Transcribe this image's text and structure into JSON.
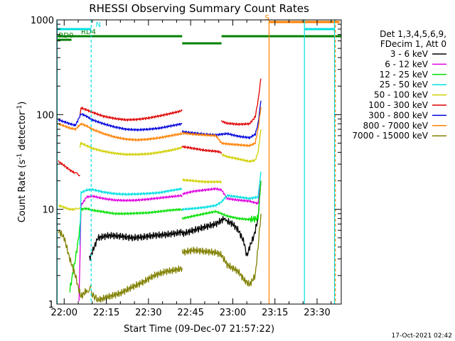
{
  "chart_data": {
    "type": "line",
    "title": "RHESSI Observing Summary Count Rates",
    "xlabel": "Start Time (09-Dec-07 21:57:22)",
    "ylabel_main": "Count Rate (s",
    "ylabel_sup1": "-1",
    "ylabel_mid": " detector",
    "ylabel_sup2": "-1",
    "ylabel_end": ")",
    "yscale": "log",
    "ylim": [
      1,
      1000
    ],
    "xlim_min": [
      -2.6,
      98.6
    ],
    "x_units": "minutes after 22:00",
    "x_ticks": [
      {
        "m": 0,
        "label": "22:00"
      },
      {
        "m": 15,
        "label": "22:15"
      },
      {
        "m": 30,
        "label": "22:30"
      },
      {
        "m": 45,
        "label": "22:45"
      },
      {
        "m": 60,
        "label": "23:00"
      },
      {
        "m": 75,
        "label": "23:15"
      },
      {
        "m": 90,
        "label": "23:30"
      }
    ],
    "y_ticks": [
      {
        "v": 1,
        "label": "1"
      },
      {
        "v": 10,
        "label": "10"
      },
      {
        "v": 100,
        "label": "100"
      },
      {
        "v": 1000,
        "label": "1000"
      }
    ],
    "legend_header": [
      "Det 1,3,4,5,6,9,",
      "FDecim 1, Att 0"
    ],
    "series": [
      {
        "name": "3 - 6 keV",
        "color": "#000000",
        "segments": [
          {
            "x": [
              9,
              12,
              16,
              20,
              24,
              28,
              32,
              36,
              40,
              42
            ],
            "y": [
              3.0,
              5.0,
              5.3,
              5.2,
              5.0,
              5.1,
              5.3,
              5.4,
              5.6,
              5.8
            ]
          },
          {
            "x": [
              42,
              46,
              50,
              54,
              57,
              58,
              60,
              62,
              64,
              65,
              66,
              67.5,
              69,
              70
            ],
            "y": [
              5.5,
              6.0,
              6.5,
              7.0,
              8.0,
              7.5,
              7.0,
              6.0,
              4.5,
              3.2,
              4.0,
              5.2,
              8.0,
              20
            ]
          }
        ]
      },
      {
        "name": "6 - 12 keV",
        "color": "#e000e0",
        "segments": [
          {
            "x": [
              5.3,
              6,
              8,
              10,
              14,
              18,
              22,
              26,
              30,
              34,
              38,
              42
            ],
            "y": [
              1.0,
              11,
              13.5,
              13.8,
              13.0,
              12.5,
              12.4,
              12.5,
              12.8,
              13.2,
              13.6,
              14.0
            ]
          },
          {
            "x": [
              42,
              46,
              50,
              54,
              56,
              58,
              62,
              66,
              69,
              70
            ],
            "y": [
              14.5,
              15.5,
              16.0,
              16.5,
              16.0,
              13.0,
              12.5,
              12.2,
              11.5,
              20
            ]
          }
        ]
      },
      {
        "name": "12 - 25 keV",
        "color": "#00e000",
        "segments": [
          {
            "x": [
              2,
              4,
              5.5,
              6,
              8,
              10,
              14,
              18,
              22,
              26,
              30,
              34,
              38,
              42
            ],
            "y": [
              1.4,
              3.0,
              6.0,
              10.0,
              10.2,
              9.8,
              9.4,
              9.0,
              9.0,
              9.1,
              9.2,
              9.5,
              9.8,
              10.0
            ]
          },
          {
            "x": [
              42,
              46,
              50,
              54,
              56,
              58,
              62,
              66,
              69,
              70
            ],
            "y": [
              8.0,
              8.5,
              9.0,
              9.5,
              9.0,
              8.5,
              8.0,
              7.8,
              8.0,
              20
            ]
          }
        ]
      },
      {
        "name": "25 - 50 keV",
        "color": "#00e0e0",
        "segments": [
          {
            "x": [
              5.5,
              6,
              8,
              10,
              14,
              18,
              22,
              26,
              30,
              34,
              38,
              42
            ],
            "y": [
              4.0,
              15,
              16.0,
              16.2,
              15.2,
              14.6,
              14.4,
              14.5,
              14.7,
              15.0,
              15.8,
              16.5
            ]
          },
          {
            "x": [
              42,
              46,
              50,
              54,
              56,
              58,
              62,
              66,
              69,
              70
            ],
            "y": [
              10.0,
              10.2,
              10.5,
              11.0,
              12.0,
              14.0,
              13.5,
              13.0,
              13.5,
              25
            ]
          }
        ]
      },
      {
        "name": "50 - 100 keV",
        "color": "#d0d000",
        "segments": [
          {
            "x": [
              -2,
              0,
              2,
              4,
              5.6
            ],
            "y": [
              11.0,
              10.5,
              10.0,
              10.0,
              10.5
            ]
          },
          {
            "x": [
              5.6,
              6,
              8,
              10,
              14,
              18,
              22,
              26,
              30,
              34,
              38,
              42
            ],
            "y": [
              45,
              50,
              47,
              44,
              41,
              39,
              38,
              38,
              38.5,
              40,
              42,
              45
            ]
          },
          {
            "x": [
              42,
              46,
              50,
              54,
              56
            ],
            "y": [
              20.5,
              20.0,
              19.5,
              19.5,
              19.5
            ]
          },
          {
            "x": [
              56,
              58,
              62,
              66,
              68,
              69,
              70
            ],
            "y": [
              38,
              36,
              34,
              32,
              33,
              40,
              70
            ]
          }
        ]
      },
      {
        "name": "100 - 300 keV",
        "color": "#e00000",
        "segments": [
          {
            "x": [
              -2,
              0,
              2,
              4,
              5.6
            ],
            "y": [
              32,
              29,
              26,
              24,
              23
            ]
          },
          {
            "x": [
              5.6,
              6,
              8,
              10,
              14,
              18,
              22,
              26,
              30,
              34,
              38,
              42
            ],
            "y": [
              100,
              118,
              112,
              106,
              96,
              91,
              88,
              89,
              92,
              97,
              103,
              110
            ]
          },
          {
            "x": [
              42,
              46,
              50,
              54,
              56
            ],
            "y": [
              46,
              44,
              42,
              41,
              40
            ]
          },
          {
            "x": [
              56,
              58,
              62,
              66,
              68,
              69,
              70
            ],
            "y": [
              85,
              81,
              79,
              80,
              95,
              140,
              240
            ]
          }
        ]
      },
      {
        "name": "300 - 800 keV",
        "color": "#0000e0",
        "segments": [
          {
            "x": [
              -2,
              0,
              2,
              4,
              6,
              8,
              10,
              14,
              18,
              22,
              26,
              30,
              34,
              38,
              42
            ],
            "y": [
              88,
              84,
              80,
              77,
              102,
              96,
              88,
              80,
              74,
              70,
              69,
              70,
              72,
              76,
              80
            ]
          },
          {
            "x": [
              42,
              46,
              50,
              54,
              56,
              58,
              62,
              66,
              68,
              69,
              70
            ],
            "y": [
              66,
              64,
              62,
              61,
              62,
              63,
              59,
              57,
              62,
              80,
              140
            ]
          }
        ]
      },
      {
        "name": "800 - 7000 keV",
        "color": "#ff8000",
        "segments": [
          {
            "x": [
              -2,
              0,
              2,
              4,
              6,
              8,
              10,
              14,
              18,
              22,
              26,
              30,
              34,
              38,
              42
            ],
            "y": [
              80,
              76,
              72,
              70,
              80,
              76,
              70,
              63,
              58,
              55,
              54,
              55,
              57,
              60,
              63
            ]
          },
          {
            "x": [
              42,
              46,
              50,
              54,
              56,
              58,
              62,
              66,
              68,
              69,
              70
            ],
            "y": [
              64,
              62,
              61,
              60,
              50,
              49,
              48,
              47,
              50,
              70,
              120
            ]
          }
        ]
      },
      {
        "name": "7000 - 15000 keV",
        "color": "#808000",
        "segments": [
          {
            "x": [
              -2,
              0,
              2,
              4,
              5,
              6,
              8,
              9.6
            ],
            "y": [
              6,
              5,
              3,
              2,
              1.5,
              1.2,
              1.4,
              1.5
            ]
          },
          {
            "x": [
              9.6,
              12,
              16,
              20,
              24,
              28,
              32,
              36,
              40,
              42
            ],
            "y": [
              1.3,
              1.1,
              1.2,
              1.3,
              1.5,
              1.7,
              2.0,
              2.2,
              2.3,
              2.4
            ]
          },
          {
            "x": [
              42,
              46,
              50,
              54,
              56,
              58,
              62,
              64,
              66,
              68,
              69,
              70
            ],
            "y": [
              3.5,
              3.7,
              3.6,
              3.5,
              3.3,
              2.6,
              2.2,
              1.8,
              1.6,
              2.0,
              4.0,
              9.0
            ]
          }
        ]
      }
    ],
    "flags": [
      {
        "label": "RD0",
        "color": "#008000",
        "label_m": -2.0,
        "segments": [
          [
            -2.6,
            2.6
          ]
        ],
        "level": 1.0
      },
      {
        "label": "RD4",
        "color": "#008000",
        "label_m": 6.0,
        "segments": [
          [
            -2.6,
            42.0
          ],
          [
            56.0,
            98.6
          ]
        ],
        "level": 1.5
      },
      {
        "label": "",
        "color": "#008000",
        "label_m": 0,
        "segments": [
          [
            42.0,
            56.0
          ]
        ],
        "level": 0.5
      },
      {
        "label": "N",
        "color": "#00e0e0",
        "label_m": 11.2,
        "segments": [
          [
            -2.6,
            9.6
          ],
          [
            85.5,
            96.3
          ]
        ],
        "level": 2.5
      },
      {
        "label": "S",
        "color": "#ff8000",
        "label_m": 71.4,
        "segments": [
          [
            73.0,
            98.0
          ]
        ],
        "level": 3.5
      }
    ],
    "vlines": [
      {
        "m": -2.5,
        "color": "#00e0e0",
        "style": "solid"
      },
      {
        "m": 9.6,
        "color": "#00e0e0",
        "style": "dashed"
      },
      {
        "m": 72.9,
        "color": "#ff8000",
        "style": "solid"
      },
      {
        "m": 85.5,
        "color": "#00e0e0",
        "style": "solid"
      },
      {
        "m": 96.2,
        "color": "#00e0e0",
        "style": "solid"
      },
      {
        "m": 96.5,
        "color": "#ff8000",
        "style": "dashed"
      }
    ]
  },
  "footer": {
    "timestamp": "17-Oct-2021 02:42"
  }
}
